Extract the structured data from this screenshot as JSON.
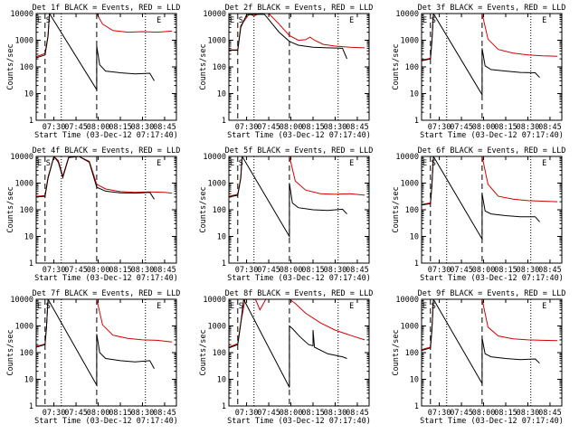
{
  "colors": {
    "events": "#000000",
    "lld": "#d40000",
    "axis": "#000000"
  },
  "chart_data": [
    {
      "type": "line",
      "title": "Det 1f BLACK = Events, RED = LLD",
      "xlabel": "Start Time (03-Dec-12 07:17:40)",
      "ylabel": "Counts/sec",
      "x_unit": "UT",
      "xlim": [
        "07:18",
        "08:53"
      ],
      "ylim": [
        1,
        10000
      ],
      "y_scale": "log",
      "x_ticks": [
        "07:30",
        "07:45",
        "08:00",
        "08:15",
        "08:30",
        "08:45"
      ],
      "y_ticks": [
        "1",
        "10",
        "100",
        "1000",
        "10000"
      ],
      "markers": [
        {
          "label": "E",
          "x": "07:18"
        },
        {
          "label": "S",
          "x": "07:24"
        },
        {
          "label": "E",
          "x": "08:39"
        }
      ],
      "dashed_lines": [
        "07:24",
        "07:59"
      ],
      "dotted_lines": [
        "07:35",
        "08:32"
      ],
      "series": [
        {
          "name": "Events",
          "color": "#000000",
          "x": [
            "07:18",
            "07:24",
            "07:26",
            "07:27",
            "07:59",
            "07:59",
            "08:01",
            "08:05",
            "08:15",
            "08:25",
            "08:35",
            "08:38"
          ],
          "y": [
            220,
            280,
            1400,
            10000,
            14,
            600,
            120,
            70,
            60,
            55,
            58,
            30
          ]
        },
        {
          "name": "LLD",
          "color": "#d40000",
          "x": [
            "07:18",
            "07:24",
            "07:26",
            "07:27",
            "07:59",
            "08:03",
            "08:10",
            "08:20",
            "08:30",
            "08:40",
            "08:50"
          ],
          "y": [
            240,
            320,
            1500,
            10000,
            10000,
            4000,
            2300,
            2000,
            2100,
            2000,
            2200
          ]
        }
      ]
    },
    {
      "type": "line",
      "title": "Det 2f BLACK = Events, RED = LLD",
      "xlabel": "Start Time (03-Dec-12 07:17:40)",
      "ylabel": "Counts/sec",
      "x_unit": "UT",
      "xlim": [
        "07:18",
        "08:53"
      ],
      "ylim": [
        1,
        10000
      ],
      "y_scale": "log",
      "x_ticks": [
        "07:30",
        "07:45",
        "08:00",
        "08:15",
        "08:30",
        "08:45"
      ],
      "y_ticks": [
        "1",
        "10",
        "100",
        "1000",
        "10000"
      ],
      "markers": [
        {
          "label": "E",
          "x": "07:18"
        },
        {
          "label": "S",
          "x": "07:24"
        },
        {
          "label": "E",
          "x": "08:39"
        }
      ],
      "dashed_lines": [
        "07:24",
        "07:59"
      ],
      "dotted_lines": [
        "07:35",
        "08:32"
      ],
      "series": [
        {
          "name": "Events",
          "color": "#000000",
          "x": [
            "07:18",
            "07:22",
            "07:24",
            "07:26",
            "07:30",
            "07:42",
            "07:52",
            "07:59",
            "08:05",
            "08:15",
            "08:25",
            "08:35",
            "08:38"
          ],
          "y": [
            420,
            420,
            420,
            3000,
            9000,
            9500,
            2000,
            900,
            650,
            550,
            520,
            500,
            200
          ]
        },
        {
          "name": "LLD",
          "color": "#d40000",
          "x": [
            "07:18",
            "07:22",
            "07:24",
            "07:26",
            "07:32",
            "07:35",
            "07:38",
            "07:45",
            "07:52",
            "07:59",
            "08:05",
            "08:10",
            "08:13",
            "08:16",
            "08:22",
            "08:30",
            "08:40",
            "08:50"
          ],
          "y": [
            440,
            430,
            440,
            3500,
            10000,
            8000,
            10000,
            10000,
            4000,
            1500,
            1000,
            1050,
            1300,
            1000,
            700,
            600,
            550,
            520
          ]
        }
      ]
    },
    {
      "type": "line",
      "title": "Det 3f BLACK = Events, RED = LLD",
      "xlabel": "Start Time (03-Dec-12 07:17:40)",
      "ylabel": "Counts/sec",
      "x_unit": "UT",
      "xlim": [
        "07:18",
        "08:53"
      ],
      "ylim": [
        1,
        10000
      ],
      "y_scale": "log",
      "x_ticks": [
        "07:30",
        "07:45",
        "08:00",
        "08:15",
        "08:30",
        "08:45"
      ],
      "y_ticks": [
        "1",
        "10",
        "100",
        "1000",
        "10000"
      ],
      "markers": [
        {
          "label": "E",
          "x": "07:18"
        },
        {
          "label": "S",
          "x": "07:24"
        },
        {
          "label": "E",
          "x": "08:39"
        }
      ],
      "dashed_lines": [
        "07:24",
        "07:59"
      ],
      "dotted_lines": [
        "07:35",
        "08:32"
      ],
      "series": [
        {
          "name": "Events",
          "color": "#000000",
          "x": [
            "07:18",
            "07:24",
            "07:25",
            "07:26",
            "07:59",
            "07:59",
            "08:01",
            "08:05",
            "08:15",
            "08:25",
            "08:35",
            "08:38"
          ],
          "y": [
            170,
            200,
            900,
            10000,
            9,
            500,
            110,
            80,
            70,
            62,
            60,
            40
          ]
        },
        {
          "name": "LLD",
          "color": "#d40000",
          "x": [
            "07:18",
            "07:24",
            "07:25",
            "07:26",
            "07:59",
            "08:03",
            "08:10",
            "08:20",
            "08:30",
            "08:40",
            "08:50"
          ],
          "y": [
            180,
            210,
            950,
            10000,
            10000,
            1100,
            450,
            330,
            280,
            260,
            250
          ]
        }
      ]
    },
    {
      "type": "line",
      "title": "Det 4f BLACK = Events, RED = LLD",
      "xlabel": "Start Time (03-Dec-12 07:17:40)",
      "ylabel": "Counts/sec",
      "x_unit": "UT",
      "xlim": [
        "07:18",
        "08:53"
      ],
      "ylim": [
        1,
        10000
      ],
      "y_scale": "log",
      "x_ticks": [
        "07:30",
        "07:45",
        "08:00",
        "08:15",
        "08:30",
        "08:45"
      ],
      "y_ticks": [
        "1",
        "10",
        "100",
        "1000",
        "10000"
      ],
      "markers": [
        {
          "label": "E",
          "x": "07:18"
        },
        {
          "label": "S",
          "x": "07:24"
        },
        {
          "label": "E",
          "x": "08:39"
        }
      ],
      "dashed_lines": [
        "07:24",
        "07:59"
      ],
      "dotted_lines": [
        "07:35",
        "08:32"
      ],
      "series": [
        {
          "name": "Events",
          "color": "#000000",
          "x": [
            "07:18",
            "07:24",
            "07:26",
            "07:30",
            "07:33",
            "07:36",
            "07:40",
            "07:47",
            "07:54",
            "07:59",
            "08:05",
            "08:15",
            "08:25",
            "08:35",
            "08:38"
          ],
          "y": [
            300,
            320,
            1500,
            10000,
            6000,
            1600,
            9000,
            10000,
            6000,
            700,
            500,
            430,
            420,
            450,
            250
          ]
        },
        {
          "name": "LLD",
          "color": "#d40000",
          "x": [
            "07:18",
            "07:24",
            "07:26",
            "07:30",
            "07:33",
            "07:36",
            "07:40",
            "07:47",
            "07:54",
            "07:59",
            "08:05",
            "08:15",
            "08:25",
            "08:35",
            "08:45",
            "08:50"
          ],
          "y": [
            320,
            340,
            1700,
            10000,
            7000,
            1800,
            9500,
            10000,
            6500,
            900,
            600,
            480,
            450,
            470,
            450,
            420
          ]
        }
      ]
    },
    {
      "type": "line",
      "title": "Det 5f BLACK = Events, RED = LLD",
      "xlabel": "Start Time (03-Dec-12 07:17:40)",
      "ylabel": "Counts/sec",
      "x_unit": "UT",
      "xlim": [
        "07:18",
        "08:53"
      ],
      "ylim": [
        1,
        10000
      ],
      "y_scale": "log",
      "x_ticks": [
        "07:30",
        "07:45",
        "08:00",
        "08:15",
        "08:30",
        "08:45"
      ],
      "y_ticks": [
        "1",
        "10",
        "100",
        "1000",
        "10000"
      ],
      "markers": [
        {
          "label": "E",
          "x": "07:18"
        },
        {
          "label": "S",
          "x": "07:24"
        },
        {
          "label": "E",
          "x": "08:39"
        }
      ],
      "dashed_lines": [
        "07:24",
        "07:59"
      ],
      "dotted_lines": [
        "07:35",
        "08:32"
      ],
      "series": [
        {
          "name": "Events",
          "color": "#000000",
          "x": [
            "07:18",
            "07:24",
            "07:26",
            "07:27",
            "07:59",
            "07:59",
            "08:01",
            "08:05",
            "08:15",
            "08:25",
            "08:35",
            "08:38"
          ],
          "y": [
            300,
            350,
            1500,
            10000,
            10,
            1000,
            180,
            120,
            100,
            95,
            105,
            70
          ]
        },
        {
          "name": "LLD",
          "color": "#d40000",
          "x": [
            "07:18",
            "07:24",
            "07:26",
            "07:27",
            "07:59",
            "08:03",
            "08:10",
            "08:20",
            "08:30",
            "08:40",
            "08:50"
          ],
          "y": [
            320,
            380,
            1600,
            10000,
            10000,
            1200,
            550,
            400,
            380,
            400,
            350
          ]
        }
      ]
    },
    {
      "type": "line",
      "title": "Det 6f BLACK = Events, RED = LLD",
      "xlabel": "Start Time (03-Dec-12 07:17:40)",
      "ylabel": "Counts/sec",
      "x_unit": "UT",
      "xlim": [
        "07:18",
        "08:53"
      ],
      "ylim": [
        1,
        10000
      ],
      "y_scale": "log",
      "x_ticks": [
        "07:30",
        "07:45",
        "08:00",
        "08:15",
        "08:30",
        "08:45"
      ],
      "y_ticks": [
        "1",
        "10",
        "100",
        "1000",
        "10000"
      ],
      "markers": [
        {
          "label": "E",
          "x": "07:18"
        },
        {
          "label": "S",
          "x": "07:24"
        },
        {
          "label": "E",
          "x": "08:39"
        }
      ],
      "dashed_lines": [
        "07:24",
        "07:59"
      ],
      "dotted_lines": [
        "07:35",
        "08:32"
      ],
      "series": [
        {
          "name": "Events",
          "color": "#000000",
          "x": [
            "07:18",
            "07:24",
            "07:25",
            "07:26",
            "07:59",
            "07:59",
            "08:01",
            "08:05",
            "08:15",
            "08:25",
            "08:35",
            "08:38"
          ],
          "y": [
            150,
            170,
            800,
            10000,
            8,
            400,
            90,
            70,
            60,
            55,
            55,
            35
          ]
        },
        {
          "name": "LLD",
          "color": "#d40000",
          "x": [
            "07:18",
            "07:24",
            "07:25",
            "07:26",
            "07:59",
            "08:03",
            "08:10",
            "08:20",
            "08:30",
            "08:40",
            "08:50"
          ],
          "y": [
            160,
            180,
            850,
            10000,
            10000,
            900,
            320,
            250,
            220,
            210,
            200
          ]
        }
      ]
    },
    {
      "type": "line",
      "title": "Det 7f BLACK = Events, RED = LLD",
      "xlabel": "Start Time (03-Dec-12 07:17:40)",
      "ylabel": "Counts/sec",
      "x_unit": "UT",
      "xlim": [
        "07:18",
        "08:53"
      ],
      "ylim": [
        1,
        10000
      ],
      "y_scale": "log",
      "x_ticks": [
        "07:30",
        "07:45",
        "08:00",
        "08:15",
        "08:30",
        "08:45"
      ],
      "y_ticks": [
        "1",
        "10",
        "100",
        "1000",
        "10000"
      ],
      "markers": [
        {
          "label": "E",
          "x": "07:18"
        },
        {
          "label": "S",
          "x": "07:24"
        },
        {
          "label": "E",
          "x": "08:39"
        }
      ],
      "dashed_lines": [
        "07:24",
        "07:59"
      ],
      "dotted_lines": [
        "07:35",
        "08:32"
      ],
      "series": [
        {
          "name": "Events",
          "color": "#000000",
          "x": [
            "07:18",
            "07:24",
            "07:25",
            "07:26",
            "07:59",
            "07:59",
            "08:01",
            "08:05",
            "08:15",
            "08:25",
            "08:35",
            "08:38"
          ],
          "y": [
            160,
            200,
            900,
            10000,
            6,
            500,
            100,
            60,
            50,
            45,
            50,
            25
          ]
        },
        {
          "name": "LLD",
          "color": "#d40000",
          "x": [
            "07:18",
            "07:24",
            "07:25",
            "07:26",
            "07:59",
            "08:03",
            "08:10",
            "08:20",
            "08:30",
            "08:40",
            "08:50"
          ],
          "y": [
            170,
            210,
            950,
            10000,
            10000,
            1100,
            450,
            340,
            300,
            290,
            250
          ]
        }
      ]
    },
    {
      "type": "line",
      "title": "Det 8f BLACK = Events, RED = LLD",
      "xlabel": "Start Time (03-Dec-12 07:17:40)",
      "ylabel": "Counts/sec",
      "x_unit": "UT",
      "xlim": [
        "07:18",
        "08:53"
      ],
      "ylim": [
        1,
        10000
      ],
      "y_scale": "log",
      "x_ticks": [
        "07:30",
        "07:45",
        "08:00",
        "08:15",
        "08:30",
        "08:45"
      ],
      "y_ticks": [
        "1",
        "10",
        "100",
        "1000",
        "10000"
      ],
      "markers": [
        {
          "label": "E",
          "x": "07:18"
        },
        {
          "label": "S",
          "x": "07:24"
        },
        {
          "label": "E",
          "x": "08:39"
        }
      ],
      "dashed_lines": [
        "07:24",
        "07:59"
      ],
      "dotted_lines": [
        "07:35",
        "08:32"
      ],
      "series": [
        {
          "name": "Events",
          "color": "#000000",
          "x": [
            "07:18",
            "07:24",
            "07:26",
            "07:28",
            "07:59",
            "07:59",
            "08:01",
            "08:06",
            "08:12",
            "08:15",
            "08:15",
            "08:16",
            "08:25",
            "08:35",
            "08:38"
          ],
          "y": [
            150,
            200,
            1200,
            10000,
            5,
            1000,
            800,
            400,
            200,
            180,
            700,
            160,
            90,
            70,
            60
          ]
        },
        {
          "name": "LLD",
          "color": "#d40000",
          "x": [
            "07:18",
            "07:24",
            "07:26",
            "07:29",
            "07:36",
            "07:39",
            "07:43",
            "07:59",
            "08:03",
            "08:10",
            "08:20",
            "08:30",
            "08:40",
            "08:50"
          ],
          "y": [
            160,
            220,
            1300,
            10000,
            10000,
            4000,
            10000,
            10000,
            7000,
            3000,
            1300,
            700,
            450,
            300
          ]
        }
      ]
    },
    {
      "type": "line",
      "title": "Det 9f BLACK = Events, RED = LLD",
      "xlabel": "Start Time (03-Dec-12 07:17:40)",
      "ylabel": "Counts/sec",
      "x_unit": "UT",
      "xlim": [
        "07:18",
        "08:53"
      ],
      "ylim": [
        1,
        10000
      ],
      "y_scale": "log",
      "x_ticks": [
        "07:30",
        "07:45",
        "08:00",
        "08:15",
        "08:30",
        "08:45"
      ],
      "y_ticks": [
        "1",
        "10",
        "100",
        "1000",
        "10000"
      ],
      "markers": [
        {
          "label": "E",
          "x": "07:18"
        },
        {
          "label": "S",
          "x": "07:24"
        },
        {
          "label": "E",
          "x": "08:39"
        }
      ],
      "dashed_lines": [
        "07:24",
        "07:59"
      ],
      "dotted_lines": [
        "07:35",
        "08:32"
      ],
      "series": [
        {
          "name": "Events",
          "color": "#000000",
          "x": [
            "07:18",
            "07:24",
            "07:25",
            "07:26",
            "07:59",
            "07:59",
            "08:01",
            "08:05",
            "08:15",
            "08:25",
            "08:35",
            "08:38"
          ],
          "y": [
            120,
            150,
            700,
            10000,
            7,
            350,
            90,
            70,
            60,
            55,
            58,
            40
          ]
        },
        {
          "name": "LLD",
          "color": "#d40000",
          "x": [
            "07:18",
            "07:24",
            "07:25",
            "07:26",
            "07:59",
            "08:03",
            "08:10",
            "08:20",
            "08:30",
            "08:40",
            "08:50"
          ],
          "y": [
            130,
            160,
            750,
            10000,
            10000,
            900,
            420,
            330,
            300,
            290,
            280
          ]
        }
      ]
    }
  ]
}
